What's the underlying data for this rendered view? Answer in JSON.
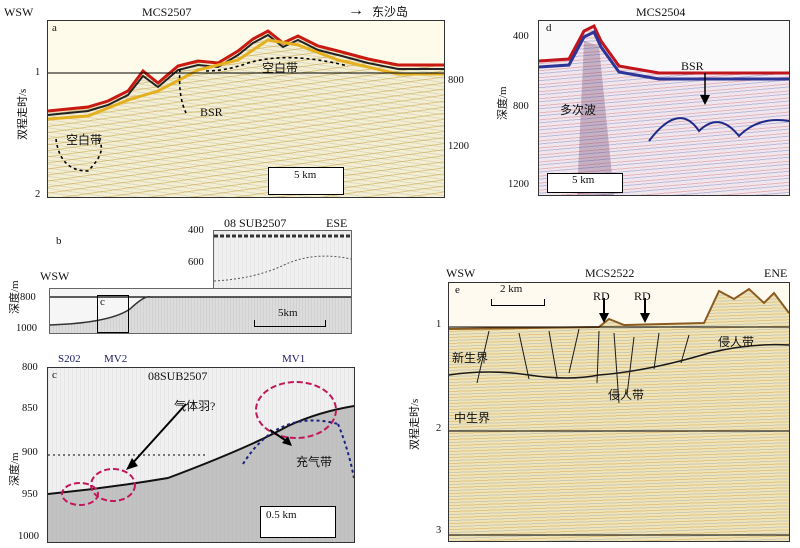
{
  "panel_a": {
    "dir_left": "WSW",
    "line": "MCS2507",
    "arrow": "→",
    "dest": "东沙岛",
    "letter": "a",
    "ylabel": "双程走时/s",
    "y_ticks": [
      "1",
      "2"
    ],
    "right_ticks": [
      "800",
      "1200"
    ],
    "labels": [
      "空白带",
      "BSR",
      "空白带"
    ],
    "scale": "5 km"
  },
  "panel_b": {
    "letter": "b",
    "dir_left": "WSW",
    "line": "08 SUB2507",
    "dir_right": "ESE",
    "ylabel": "深度/m",
    "left_ticks": [
      "800",
      "1000"
    ],
    "inner_ticks": [
      "400",
      "600"
    ],
    "box_label": "c",
    "scale": "5km"
  },
  "panel_c": {
    "letter": "c",
    "line": "08SUB2507",
    "markers": [
      "S202",
      "MV2",
      "MV1"
    ],
    "ylabel": "深度/m",
    "y_ticks": [
      "800",
      "850",
      "900",
      "950",
      "1000"
    ],
    "labels": [
      "气体羽?",
      "充气带"
    ],
    "scale": "0.5 km"
  },
  "panel_d": {
    "letter": "d",
    "line": "MCS2504",
    "ylabel": "深度/m",
    "y_ticks": [
      "400",
      "800",
      "1200"
    ],
    "labels": [
      "BSR",
      "多次波"
    ],
    "scale": "5 km"
  },
  "panel_e": {
    "letter": "e",
    "dir_left": "WSW",
    "line": "MCS2522",
    "dir_right": "ENE",
    "ylabel": "双程走时/s",
    "y_ticks": [
      "1",
      "2",
      "3"
    ],
    "labels": [
      "RD",
      "RD",
      "新生界",
      "侵人带",
      "侵人带",
      "中生界"
    ],
    "scale": "2 km"
  }
}
